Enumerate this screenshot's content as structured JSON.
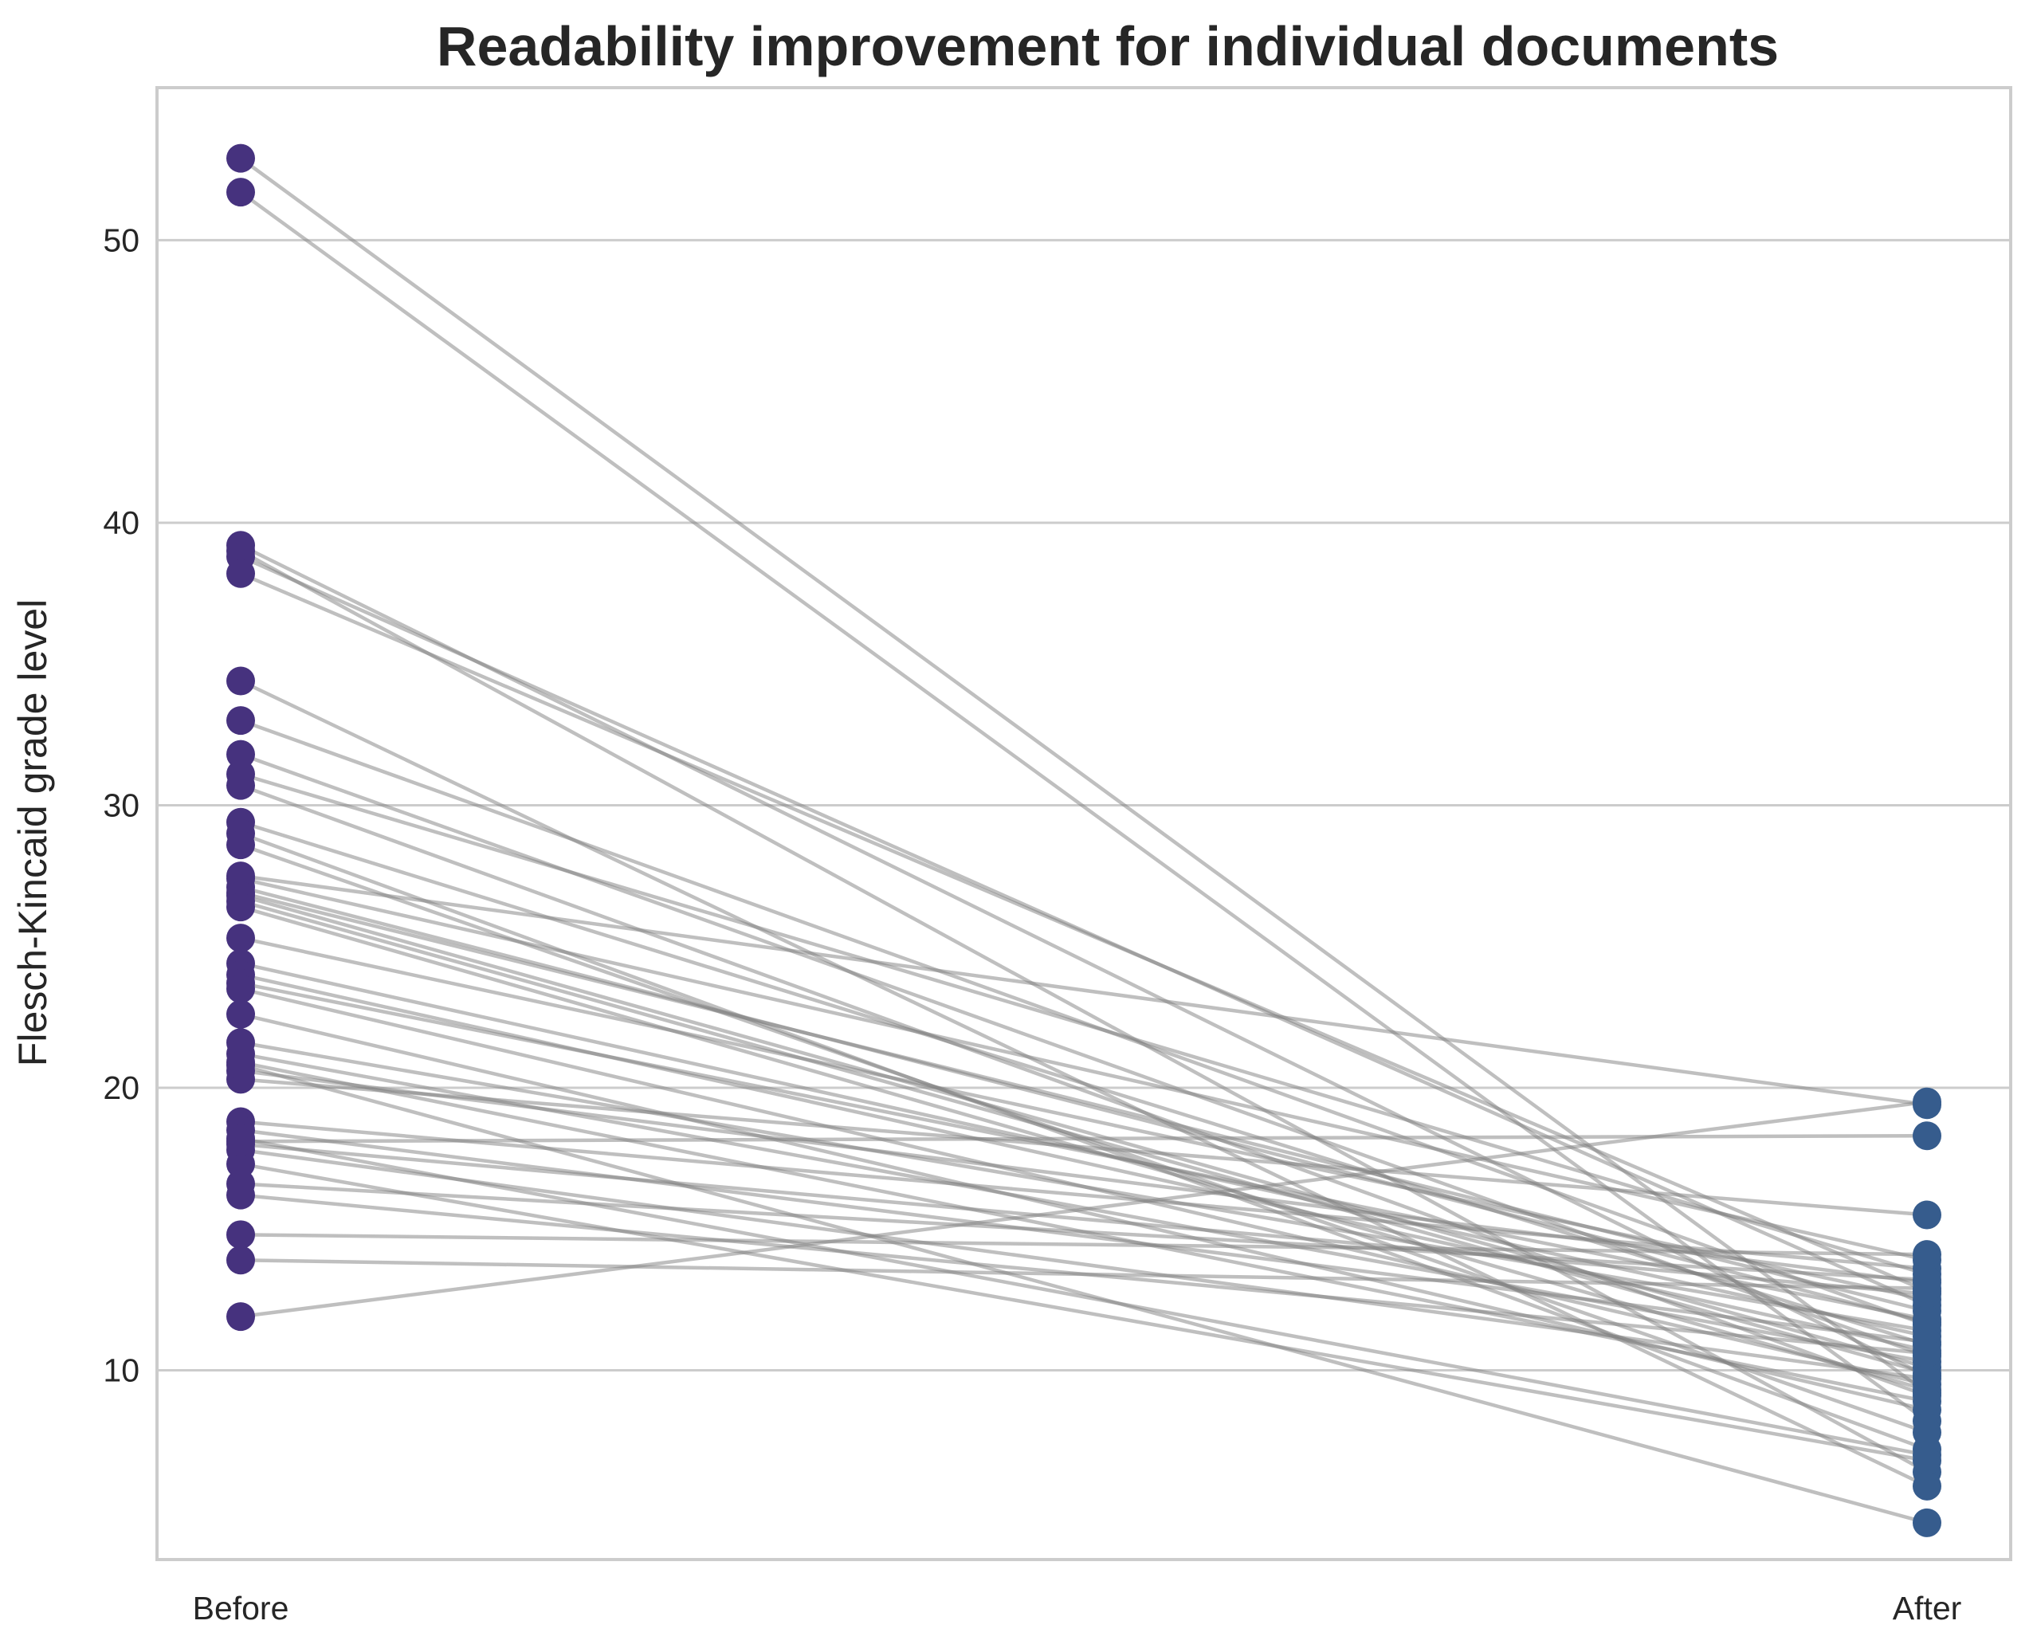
{
  "chart_data": {
    "type": "line",
    "title": "Readability improvement for individual documents",
    "xlabel": "",
    "ylabel": "Flesch-Kincaid grade level",
    "categories": [
      "Before",
      "After"
    ],
    "ylim": [
      3.3,
      55.4
    ],
    "yticks": [
      10,
      20,
      30,
      40,
      50
    ],
    "grid": "horizontal",
    "colors": {
      "before": "#46327e",
      "after": "#365c8d",
      "line": "#808080",
      "grid": "#cccccc",
      "axis": "#cccccc"
    },
    "pairs": [
      [
        52.9,
        9.2
      ],
      [
        51.7,
        8.2
      ],
      [
        39.2,
        9.8
      ],
      [
        39.0,
        6.4
      ],
      [
        38.8,
        12.3
      ],
      [
        38.2,
        12.8
      ],
      [
        34.4,
        5.9
      ],
      [
        33.0,
        11.6
      ],
      [
        31.8,
        10.5
      ],
      [
        31.1,
        13.4
      ],
      [
        30.7,
        9.1
      ],
      [
        29.4,
        10.9
      ],
      [
        29.0,
        7.2
      ],
      [
        28.6,
        7.8
      ],
      [
        27.5,
        19.4
      ],
      [
        27.4,
        13.9
      ],
      [
        27.1,
        11.7
      ],
      [
        26.9,
        12.1
      ],
      [
        26.8,
        10.1
      ],
      [
        26.6,
        9.9
      ],
      [
        26.4,
        9.3
      ],
      [
        25.3,
        12.5
      ],
      [
        24.4,
        11.2
      ],
      [
        24.0,
        10.7
      ],
      [
        23.7,
        11.8
      ],
      [
        23.5,
        9.5
      ],
      [
        22.6,
        8.6
      ],
      [
        21.6,
        11.4
      ],
      [
        21.2,
        10.3
      ],
      [
        20.9,
        8.9
      ],
      [
        20.6,
        13.1
      ],
      [
        20.3,
        15.5
      ],
      [
        18.8,
        13.6
      ],
      [
        18.5,
        11.0
      ],
      [
        18.2,
        7.0
      ],
      [
        18.0,
        12.7
      ],
      [
        17.8,
        9.7
      ],
      [
        17.3,
        6.8
      ],
      [
        16.6,
        13.2
      ],
      [
        16.2,
        10.6
      ],
      [
        14.8,
        14.1
      ],
      [
        13.9,
        12.9
      ],
      [
        18.1,
        18.3
      ],
      [
        11.9,
        19.5
      ],
      [
        20.8,
        4.6
      ]
    ]
  }
}
